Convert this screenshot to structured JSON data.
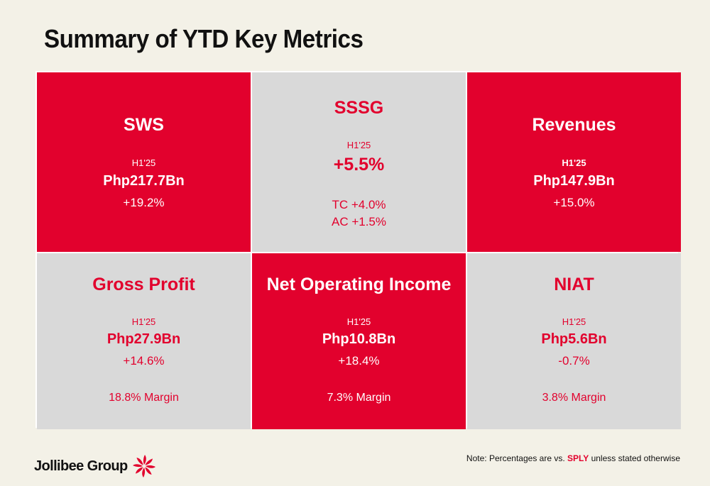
{
  "title": "Summary of YTD Key Metrics",
  "tiles": {
    "sws": {
      "head": "SWS",
      "period": "H1'25",
      "value": "Php217.7Bn",
      "change": "+19.2%"
    },
    "sssg": {
      "head": "SSSG",
      "period": "H1'25",
      "value": "+5.5%",
      "tc": "TC +4.0%",
      "ac": "AC +1.5%"
    },
    "revenues": {
      "head": "Revenues",
      "period": "H1'25",
      "value": "Php147.9Bn",
      "change": "+15.0%"
    },
    "gross_profit": {
      "head": "Gross Profit",
      "period": "H1'25",
      "value": "Php27.9Bn",
      "change": "+14.6%",
      "margin": "18.8% Margin"
    },
    "noi": {
      "head": "Net Operating Income",
      "period": "H1'25",
      "value": "Php10.8Bn",
      "change": "+18.4%",
      "margin": "7.3% Margin"
    },
    "niat": {
      "head": "NIAT",
      "period": "H1'25",
      "value": "Php5.6Bn",
      "change": "-0.7%",
      "margin": "3.8% Margin"
    }
  },
  "footer": {
    "brand": "Jollibee Group",
    "note_prefix": "Note: Percentages are vs. ",
    "note_highlight": "SPLY",
    "note_suffix": " unless stated otherwise"
  },
  "colors": {
    "accent": "#e2012d",
    "tile_grey": "#d9d9d9",
    "background": "#f3f1e7"
  },
  "icons": {
    "logo": "jollibee-bee-burst-logo"
  }
}
